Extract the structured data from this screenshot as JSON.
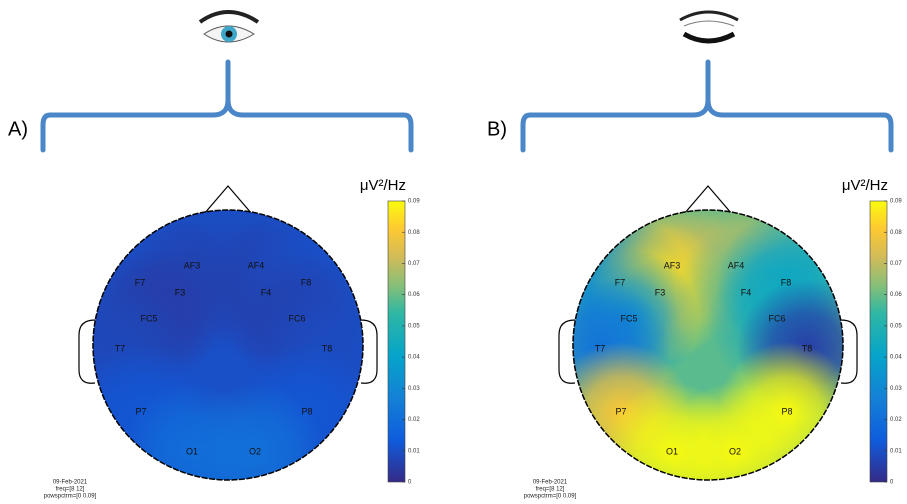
{
  "chart_data": [
    {
      "type": "topoplot",
      "panel_label": "A)",
      "colorbar_label": "μV²/Hz",
      "categories": [
        "AF3",
        "AF4",
        "F7",
        "F3",
        "F4",
        "F8",
        "FC5",
        "FC6",
        "T7",
        "T8",
        "P7",
        "P8",
        "O1",
        "O2"
      ],
      "values": [
        0.008,
        0.008,
        0.01,
        0.006,
        0.006,
        0.01,
        0.005,
        0.006,
        0.008,
        0.009,
        0.012,
        0.012,
        0.02,
        0.021
      ],
      "clim": [
        0,
        0.09
      ],
      "cticks": [
        0,
        0.01,
        0.02,
        0.03,
        0.04,
        0.05,
        0.06,
        0.07,
        0.08,
        0.09
      ],
      "date": "09-Feb-2021",
      "freq": "freq=[8 12]",
      "powspctrm": "powspctrm=[0 0.09]"
    },
    {
      "type": "topoplot",
      "panel_label": "B)",
      "colorbar_label": "μV²/Hz",
      "categories": [
        "AF3",
        "AF4",
        "F7",
        "F3",
        "F4",
        "F8",
        "FC5",
        "FC6",
        "T7",
        "T8",
        "P7",
        "P8",
        "O1",
        "O2"
      ],
      "values": [
        0.075,
        0.07,
        0.03,
        0.085,
        0.06,
        0.04,
        0.035,
        0.045,
        0.022,
        0.005,
        0.08,
        0.09,
        0.09,
        0.09
      ],
      "clim": [
        0,
        0.09
      ],
      "cticks": [
        0,
        0.01,
        0.02,
        0.03,
        0.04,
        0.05,
        0.06,
        0.07,
        0.08,
        0.09
      ],
      "date": "09-Feb-2021",
      "freq": "freq=[8 12]",
      "powspctrm": "powspctrm=[0 0.09]"
    }
  ]
}
